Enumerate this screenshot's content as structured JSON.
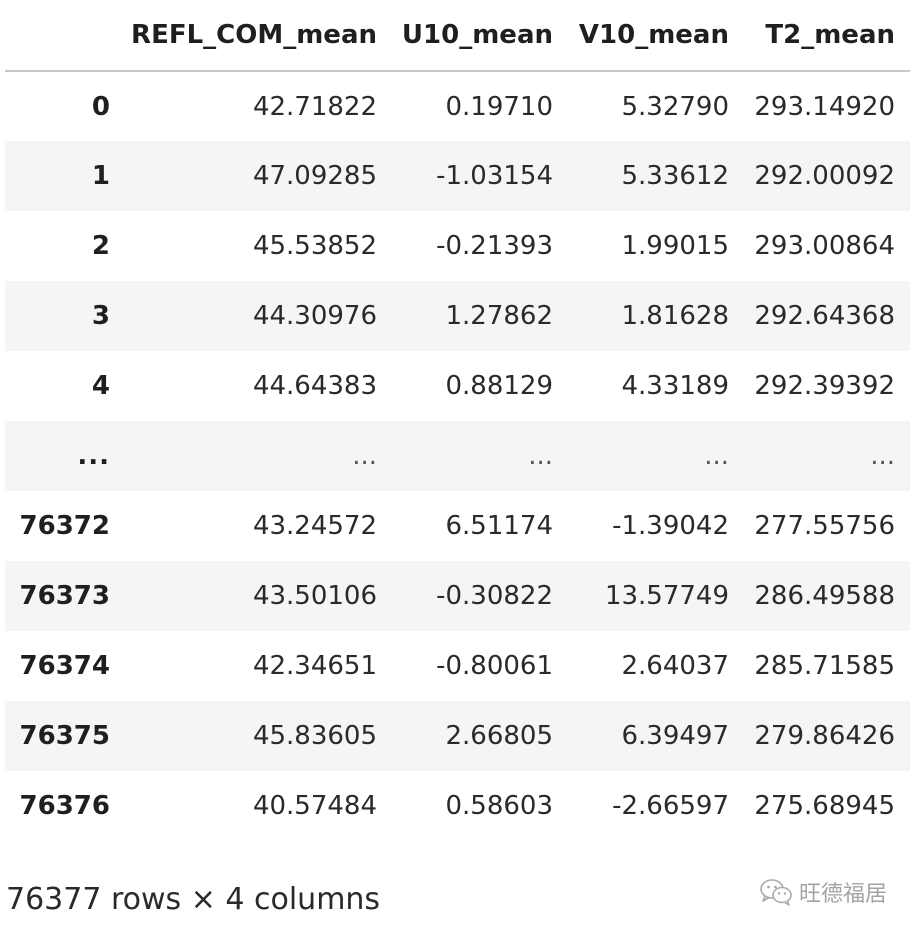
{
  "dataframe": {
    "columns": [
      "",
      "REFL_COM_mean",
      "U10_mean",
      "V10_mean",
      "T2_mean"
    ],
    "rows": [
      {
        "index": "0",
        "cells": [
          "42.71822",
          "0.19710",
          "5.32790",
          "293.14920"
        ]
      },
      {
        "index": "1",
        "cells": [
          "47.09285",
          "-1.03154",
          "5.33612",
          "292.00092"
        ]
      },
      {
        "index": "2",
        "cells": [
          "45.53852",
          "-0.21393",
          "1.99015",
          "293.00864"
        ]
      },
      {
        "index": "3",
        "cells": [
          "44.30976",
          "1.27862",
          "1.81628",
          "292.64368"
        ]
      },
      {
        "index": "4",
        "cells": [
          "44.64383",
          "0.88129",
          "4.33189",
          "292.39392"
        ]
      },
      {
        "index": "...",
        "cells": [
          "...",
          "...",
          "...",
          "..."
        ]
      },
      {
        "index": "76372",
        "cells": [
          "43.24572",
          "6.51174",
          "-1.39042",
          "277.55756"
        ]
      },
      {
        "index": "76373",
        "cells": [
          "43.50106",
          "-0.30822",
          "13.57749",
          "286.49588"
        ]
      },
      {
        "index": "76374",
        "cells": [
          "42.34651",
          "-0.80061",
          "2.64037",
          "285.71585"
        ]
      },
      {
        "index": "76375",
        "cells": [
          "45.83605",
          "2.66805",
          "6.39497",
          "279.86426"
        ]
      },
      {
        "index": "76376",
        "cells": [
          "40.57484",
          "0.58603",
          "-2.66597",
          "275.68945"
        ]
      }
    ]
  },
  "shape_note": "76377 rows × 4 columns",
  "watermark": {
    "text": "旺德福居",
    "icon": "wechat-icon"
  }
}
